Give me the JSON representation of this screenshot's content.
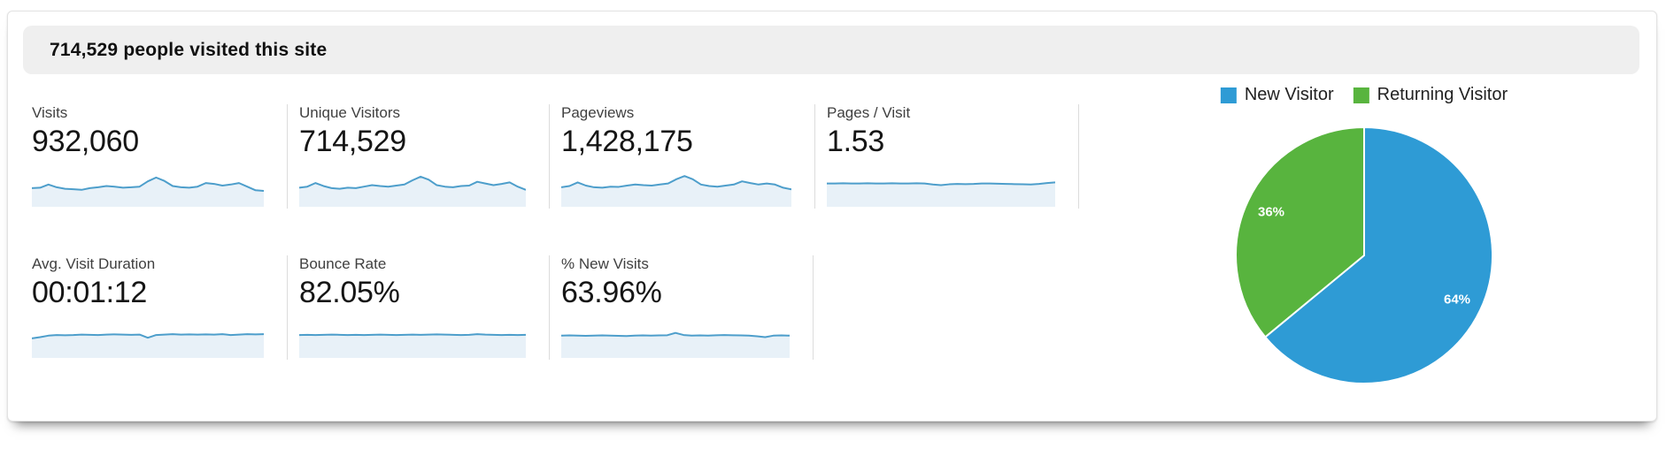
{
  "header": {
    "title": "714,529 people visited this site"
  },
  "metrics": {
    "row1": [
      {
        "label": "Visits",
        "value": "932,060",
        "spark": [
          0.38,
          0.4,
          0.55,
          0.42,
          0.35,
          0.33,
          0.3,
          0.38,
          0.42,
          0.48,
          0.45,
          0.4,
          0.42,
          0.45,
          0.7,
          0.88,
          0.72,
          0.48,
          0.42,
          0.4,
          0.45,
          0.62,
          0.58,
          0.5,
          0.55,
          0.62,
          0.45,
          0.28,
          0.25
        ]
      },
      {
        "label": "Unique Visitors",
        "value": "714,529",
        "spark": [
          0.4,
          0.45,
          0.62,
          0.48,
          0.38,
          0.35,
          0.4,
          0.38,
          0.45,
          0.52,
          0.48,
          0.45,
          0.5,
          0.55,
          0.75,
          0.92,
          0.78,
          0.52,
          0.45,
          0.42,
          0.48,
          0.5,
          0.68,
          0.6,
          0.52,
          0.58,
          0.65,
          0.45,
          0.3
        ]
      },
      {
        "label": "Pageviews",
        "value": "1,428,175",
        "spark": [
          0.42,
          0.48,
          0.65,
          0.5,
          0.42,
          0.4,
          0.45,
          0.44,
          0.5,
          0.55,
          0.52,
          0.5,
          0.55,
          0.6,
          0.8,
          0.95,
          0.8,
          0.55,
          0.48,
          0.45,
          0.5,
          0.55,
          0.7,
          0.62,
          0.55,
          0.6,
          0.55,
          0.4,
          0.32
        ]
      },
      {
        "label": "Pages / Visit",
        "value": "1.53",
        "spark": [
          0.6,
          0.6,
          0.61,
          0.6,
          0.6,
          0.61,
          0.6,
          0.6,
          0.61,
          0.6,
          0.6,
          0.61,
          0.6,
          0.55,
          0.52,
          0.56,
          0.58,
          0.57,
          0.58,
          0.6,
          0.6,
          0.59,
          0.58,
          0.57,
          0.56,
          0.55,
          0.58,
          0.62,
          0.65
        ]
      }
    ],
    "row2": [
      {
        "label": "Avg. Visit Duration",
        "value": "00:01:12",
        "spark": [
          0.42,
          0.48,
          0.55,
          0.58,
          0.57,
          0.58,
          0.6,
          0.59,
          0.58,
          0.6,
          0.61,
          0.6,
          0.59,
          0.6,
          0.45,
          0.58,
          0.6,
          0.62,
          0.6,
          0.61,
          0.6,
          0.61,
          0.6,
          0.62,
          0.58,
          0.6,
          0.62,
          0.61,
          0.62
        ]
      },
      {
        "label": "Bounce Rate",
        "value": "82.05%",
        "spark": [
          0.58,
          0.59,
          0.58,
          0.59,
          0.6,
          0.59,
          0.58,
          0.59,
          0.58,
          0.59,
          0.6,
          0.59,
          0.58,
          0.59,
          0.6,
          0.59,
          0.6,
          0.61,
          0.6,
          0.59,
          0.58,
          0.59,
          0.62,
          0.6,
          0.59,
          0.58,
          0.59,
          0.58,
          0.59
        ]
      },
      {
        "label": "% New Visits",
        "value": "63.96%",
        "spark": [
          0.55,
          0.56,
          0.55,
          0.54,
          0.55,
          0.56,
          0.55,
          0.54,
          0.53,
          0.55,
          0.56,
          0.55,
          0.56,
          0.57,
          0.68,
          0.58,
          0.55,
          0.56,
          0.55,
          0.57,
          0.58,
          0.57,
          0.56,
          0.55,
          0.52,
          0.48,
          0.55,
          0.56,
          0.55
        ]
      }
    ]
  },
  "legend": [
    {
      "label": "New Visitor",
      "color": "#2e9bd5"
    },
    {
      "label": "Returning Visitor",
      "color": "#58b43e"
    }
  ],
  "chart_data": {
    "type": "pie",
    "title": "",
    "slices": [
      {
        "label": "New Visitor",
        "value": 64,
        "display": "64%",
        "color": "#2e9bd5"
      },
      {
        "label": "Returning Visitor",
        "value": 36,
        "display": "36%",
        "color": "#58b43e"
      }
    ],
    "start_angle_deg": -90,
    "direction": "clockwise",
    "legend_position": "top",
    "slice_separator_color": "#ffffff"
  },
  "colors": {
    "header_bar_bg": "#efefef",
    "spark_line": "#4d9ecb",
    "spark_fill": "#e8f1f8",
    "divider": "#dcdcdc"
  }
}
